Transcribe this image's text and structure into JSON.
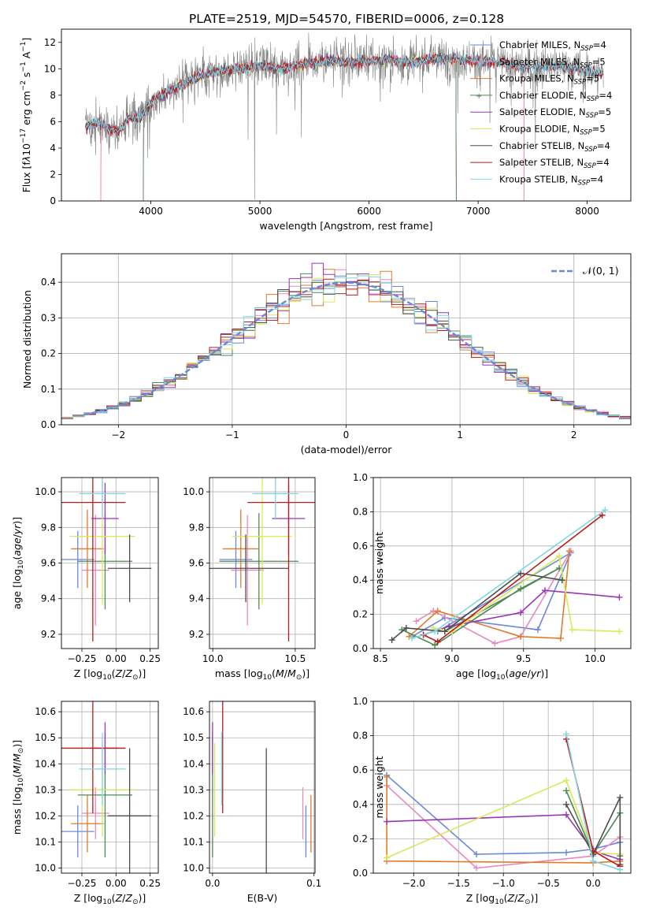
{
  "figure": {
    "title": "PLATE=2519, MJD=54570, FIBERID=0006, z=0.128"
  },
  "colors": {
    "Chabrier MILES": "#6a89d6",
    "Salpeter MILES": "#e889bd",
    "Kroupa MILES": "#e07b2c",
    "Chabrier ELODIE": "#4f8a55",
    "Salpeter ELODIE": "#9a35b5",
    "Kroupa ELODIE": "#d8e85a",
    "Chabrier STELIB": "#4d4d4d",
    "Salpeter STELIB": "#b81c1c",
    "Kroupa STELIB": "#7fd6e0",
    "data": "#808080",
    "normal": "#6a89d6",
    "grid": "#b0b0b0"
  },
  "chart_data": [
    {
      "id": "spectrum",
      "type": "line",
      "xlabel": "wavelength [Angstrom, rest frame]",
      "ylabel_html": "Flux [f<tspan font-style='italic'>λ</tspan>10<tspan dy='-6' font-size='9'>−17</tspan><tspan dy='6'> erg cm</tspan><tspan dy='-6' font-size='9'>−2</tspan><tspan dy='6'> s</tspan><tspan dy='-6' font-size='9'>−1</tspan><tspan dy='6'> A</tspan><tspan dy='-6' font-size='9'>−1</tspan><tspan dy='6'>]</tspan>",
      "xlim": [
        3180,
        8400
      ],
      "ylim": [
        0,
        13
      ],
      "xticks": [
        4000,
        5000,
        6000,
        7000,
        8000
      ],
      "yticks": [
        0,
        2,
        4,
        6,
        8,
        10,
        12
      ],
      "grid": false,
      "legend_position": "right",
      "legend": [
        "Chabrier MILES, N<sub>SSP</sub>=4",
        "Salpeter MILES, N<sub>SSP</sub>=5",
        "Kroupa MILES, N<sub>SSP</sub>=5",
        "Chabrier ELODIE, N<sub>SSP</sub>=4",
        "Salpeter ELODIE, N<sub>SSP</sub>=5",
        "Kroupa ELODIE, N<sub>SSP</sub>=5",
        "Chabrier STELIB, N<sub>SSP</sub>=4",
        "Salpeter STELIB, N<sub>SSP</sub>=4",
        "Kroupa STELIB, N<sub>SSP</sub>=4"
      ],
      "continuum": {
        "x": [
          3400,
          3500,
          3600,
          3700,
          3800,
          3900,
          4000,
          4100,
          4200,
          4400,
          4600,
          4800,
          5000,
          5200,
          5400,
          5600,
          5800,
          6000,
          6200,
          6400,
          6600,
          6800,
          7000,
          7200,
          7400,
          7600,
          7800,
          8000,
          8150
        ],
        "y": [
          5.6,
          5.9,
          5.6,
          5.2,
          6.3,
          6.3,
          7.5,
          8.0,
          8.5,
          9.3,
          9.8,
          10.0,
          10.2,
          10.0,
          10.4,
          10.6,
          10.5,
          10.6,
          10.7,
          10.5,
          10.8,
          10.7,
          10.6,
          10.5,
          10.1,
          10.2,
          10.2,
          9.8,
          9.6
        ]
      },
      "model_breaks": {
        "Salpeter MILES": [
          3540,
          7420
        ],
        "Kroupa MILES": [
          3540,
          7420
        ],
        "Kroupa ELODIE": [
          3930,
          6800
        ],
        "Salpeter ELODIE": [
          3930,
          6800
        ],
        "Chabrier ELODIE": [
          3930,
          6800
        ]
      }
    },
    {
      "id": "residuals",
      "type": "histogram",
      "xlabel": "(data-model)/error",
      "ylabel": "Normed distribution",
      "xlim": [
        -2.5,
        2.5
      ],
      "ylim": [
        0,
        0.48
      ],
      "xticks": [
        -2,
        -1,
        0,
        1,
        2
      ],
      "yticks": [
        0.0,
        0.1,
        0.2,
        0.3,
        0.4
      ],
      "grid": true,
      "legend_position": "top-right",
      "legend": [
        "𝒩(0, 1)"
      ],
      "bin_width": 0.1
    },
    {
      "id": "age_vs_Z",
      "type": "errorbar",
      "xlabel": "Z [log10(Z/Z⊙)]",
      "ylabel": "age  [log10(age/yr)]",
      "xlim": [
        -0.4,
        0.31
      ],
      "ylim": [
        9.12,
        10.08
      ],
      "xticks": [
        -0.25,
        0.0,
        0.25
      ],
      "yticks": [
        9.2,
        9.4,
        9.6,
        9.8,
        10.0
      ],
      "grid": true,
      "points": [
        {
          "model": "Chabrier MILES",
          "x": -0.28,
          "xerr": 0.12,
          "y": 9.62,
          "yerr": 0.16
        },
        {
          "model": "Salpeter MILES",
          "x": -0.15,
          "xerr": 0.1,
          "y": 9.56,
          "yerr": 0.31
        },
        {
          "model": "Kroupa MILES",
          "x": -0.21,
          "xerr": 0.12,
          "y": 9.68,
          "yerr": 0.22
        },
        {
          "model": "Chabrier ELODIE",
          "x": -0.08,
          "xerr": 0.2,
          "y": 9.61,
          "yerr": 0.27
        },
        {
          "model": "Salpeter ELODIE",
          "x": -0.08,
          "xerr": 0.1,
          "y": 9.85,
          "yerr": 0.2
        },
        {
          "model": "Kroupa ELODIE",
          "x": -0.1,
          "xerr": 0.24,
          "y": 9.75,
          "yerr": 0.38
        },
        {
          "model": "Chabrier STELIB",
          "x": 0.1,
          "xerr": 0.16,
          "y": 9.57,
          "yerr": 0.19
        },
        {
          "model": "Salpeter STELIB",
          "x": -0.17,
          "xerr": 0.24,
          "y": 9.94,
          "yerr": 0.78
        },
        {
          "model": "Kroupa STELIB",
          "x": -0.1,
          "xerr": 0.17,
          "y": 9.99,
          "yerr": 0.14
        }
      ]
    },
    {
      "id": "age_vs_mass",
      "type": "errorbar",
      "xlabel": "mass [log10(M/M⊙)]",
      "ylabel": "",
      "xlim": [
        9.98,
        10.62
      ],
      "ylim": [
        9.12,
        10.08
      ],
      "xticks": [
        10.0,
        10.5
      ],
      "yticks": [
        9.2,
        9.4,
        9.6,
        9.8,
        10.0
      ],
      "grid": true,
      "points": [
        {
          "model": "Chabrier MILES",
          "x": 10.14,
          "xerr": 0.1,
          "y": 9.62,
          "yerr": 0.16
        },
        {
          "model": "Salpeter MILES",
          "x": 10.21,
          "xerr": 0.1,
          "y": 9.56,
          "yerr": 0.31
        },
        {
          "model": "Kroupa MILES",
          "x": 10.17,
          "xerr": 0.11,
          "y": 9.68,
          "yerr": 0.22
        },
        {
          "model": "Chabrier ELODIE",
          "x": 10.28,
          "xerr": 0.24,
          "y": 9.61,
          "yerr": 0.27
        },
        {
          "model": "Salpeter ELODIE",
          "x": 10.46,
          "xerr": 0.1,
          "y": 9.85,
          "yerr": 0.2
        },
        {
          "model": "Kroupa ELODIE",
          "x": 10.3,
          "xerr": 0.18,
          "y": 9.75,
          "yerr": 0.38
        },
        {
          "model": "Chabrier STELIB",
          "x": 10.2,
          "xerr": 0.26,
          "y": 9.57,
          "yerr": 0.19
        },
        {
          "model": "Salpeter STELIB",
          "x": 10.46,
          "xerr": 0.25,
          "y": 9.94,
          "yerr": 0.78
        },
        {
          "model": "Kroupa STELIB",
          "x": 10.38,
          "xerr": 0.14,
          "y": 9.99,
          "yerr": 0.14
        }
      ]
    },
    {
      "id": "weight_vs_age",
      "type": "line",
      "xlabel": "age  [log10(age/yr)]",
      "ylabel": "mass weight",
      "xlim": [
        8.45,
        10.25
      ],
      "ylim": [
        0.0,
        1.0
      ],
      "xticks": [
        8.5,
        9.0,
        9.5,
        10.0
      ],
      "yticks": [
        0.0,
        0.2,
        0.4,
        0.6,
        0.8,
        1.0
      ],
      "grid": true,
      "series": [
        {
          "model": "Chabrier MILES",
          "x": [
            8.72,
            8.95,
            9.6,
            9.83,
            8.9
          ],
          "y": [
            0.07,
            0.18,
            0.11,
            0.56,
            0.1
          ]
        },
        {
          "model": "Salpeter MILES",
          "x": [
            8.75,
            8.87,
            9.3,
            9.48,
            9.83
          ],
          "y": [
            0.16,
            0.22,
            0.03,
            0.07,
            0.57
          ]
        },
        {
          "model": "Kroupa MILES",
          "x": [
            8.7,
            8.9,
            9.48,
            9.76,
            9.82
          ],
          "y": [
            0.07,
            0.22,
            0.07,
            0.06,
            0.57
          ]
        },
        {
          "model": "Chabrier ELODIE",
          "x": [
            8.65,
            8.88,
            9.48,
            9.75,
            8.95
          ],
          "y": [
            0.11,
            0.02,
            0.35,
            0.47,
            0.1
          ]
        },
        {
          "model": "Salpeter ELODIE",
          "x": [
            8.8,
            8.98,
            9.48,
            9.65,
            10.17
          ],
          "y": [
            0.08,
            0.13,
            0.21,
            0.34,
            0.3
          ]
        },
        {
          "model": "Kroupa ELODIE",
          "x": [
            8.87,
            9.0,
            9.75,
            9.84,
            10.17
          ],
          "y": [
            0.12,
            0.1,
            0.54,
            0.11,
            0.1
          ]
        },
        {
          "model": "Chabrier STELIB",
          "x": [
            8.58,
            8.68,
            8.95,
            9.48,
            9.77
          ],
          "y": [
            0.05,
            0.12,
            0.1,
            0.44,
            0.4
          ]
        },
        {
          "model": "Salpeter STELIB",
          "x": [
            8.8,
            8.9,
            10.05
          ],
          "y": [
            0.08,
            0.04,
            0.78
          ]
        },
        {
          "model": "Kroupa STELIB",
          "x": [
            8.72,
            8.88,
            10.07
          ],
          "y": [
            0.06,
            0.1,
            0.81
          ]
        }
      ]
    },
    {
      "id": "mass_vs_Z",
      "type": "errorbar",
      "xlabel": "Z [log10(Z/Z⊙)]",
      "ylabel": "mass [log10(M/M⊙)]",
      "xlim": [
        -0.4,
        0.31
      ],
      "ylim": [
        9.98,
        10.64
      ],
      "xticks": [
        -0.25,
        0.0,
        0.25
      ],
      "yticks": [
        10.0,
        10.1,
        10.2,
        10.3,
        10.4,
        10.5,
        10.6
      ],
      "grid": true,
      "points": [
        {
          "model": "Chabrier MILES",
          "x": -0.28,
          "xerr": 0.12,
          "y": 10.14,
          "yerr": 0.1
        },
        {
          "model": "Salpeter MILES",
          "x": -0.15,
          "xerr": 0.1,
          "y": 10.21,
          "yerr": 0.1
        },
        {
          "model": "Kroupa MILES",
          "x": -0.21,
          "xerr": 0.12,
          "y": 10.17,
          "yerr": 0.11
        },
        {
          "model": "Chabrier ELODIE",
          "x": -0.08,
          "xerr": 0.2,
          "y": 10.28,
          "yerr": 0.24
        },
        {
          "model": "Salpeter ELODIE",
          "x": -0.08,
          "xerr": 0.1,
          "y": 10.46,
          "yerr": 0.1
        },
        {
          "model": "Kroupa ELODIE",
          "x": -0.1,
          "xerr": 0.24,
          "y": 10.3,
          "yerr": 0.18
        },
        {
          "model": "Chabrier STELIB",
          "x": 0.1,
          "xerr": 0.16,
          "y": 10.2,
          "yerr": 0.26
        },
        {
          "model": "Salpeter STELIB",
          "x": -0.17,
          "xerr": 0.24,
          "y": 10.46,
          "yerr": 0.25
        },
        {
          "model": "Kroupa STELIB",
          "x": -0.1,
          "xerr": 0.17,
          "y": 10.38,
          "yerr": 0.14
        }
      ]
    },
    {
      "id": "mass_vs_ebv",
      "type": "errorbar",
      "xlabel": "E(B-V)",
      "ylabel": "",
      "xlim": [
        -0.003,
        0.101
      ],
      "ylim": [
        9.98,
        10.64
      ],
      "xticks": [
        0.0,
        0.1
      ],
      "yticks": [
        10.0,
        10.1,
        10.2,
        10.3,
        10.4,
        10.5,
        10.6
      ],
      "grid": true,
      "points": [
        {
          "model": "Chabrier MILES",
          "x": 0.092,
          "y": 10.14,
          "yerr": 0.1
        },
        {
          "model": "Salpeter MILES",
          "x": 0.089,
          "y": 10.21,
          "yerr": 0.1
        },
        {
          "model": "Kroupa MILES",
          "x": 0.097,
          "y": 10.17,
          "yerr": 0.11
        },
        {
          "model": "Chabrier ELODIE",
          "x": 0.0,
          "y": 10.28,
          "yerr": 0.24
        },
        {
          "model": "Salpeter ELODIE",
          "x": 0.0,
          "y": 10.46,
          "yerr": 0.1
        },
        {
          "model": "Kroupa ELODIE",
          "x": 0.002,
          "y": 10.3,
          "yerr": 0.18
        },
        {
          "model": "Chabrier STELIB",
          "x": 0.053,
          "y": 10.2,
          "yerr": 0.26
        },
        {
          "model": "Salpeter STELIB",
          "x": 0.01,
          "y": 10.46,
          "yerr": 0.25
        },
        {
          "model": "Kroupa STELIB",
          "x": 0.009,
          "y": 10.38,
          "yerr": 0.14
        }
      ]
    },
    {
      "id": "weight_vs_Z",
      "type": "line",
      "xlabel": "Z [log10(Z/Z⊙)]",
      "ylabel": "mass weight",
      "xlim": [
        -2.45,
        0.42
      ],
      "ylim": [
        0.0,
        1.0
      ],
      "xticks": [
        -2.0,
        -1.5,
        -1.0,
        -0.5,
        0.0
      ],
      "yticks": [
        0.0,
        0.2,
        0.4,
        0.6,
        0.8,
        1.0
      ],
      "grid": true,
      "series": [
        {
          "model": "Chabrier MILES",
          "x": [
            -2.3,
            -1.3,
            -0.3,
            0.0,
            0.3
          ],
          "y": [
            0.57,
            0.11,
            0.12,
            0.14,
            0.18
          ]
        },
        {
          "model": "Salpeter MILES",
          "x": [
            -2.3,
            -1.3,
            0.0,
            0.3
          ],
          "y": [
            0.51,
            0.03,
            0.1,
            0.21
          ]
        },
        {
          "model": "Kroupa MILES",
          "x": [
            -2.3,
            -2.3,
            0.0,
            0.3,
            0.3
          ],
          "y": [
            0.56,
            0.07,
            0.06,
            0.07,
            0.04
          ]
        },
        {
          "model": "Chabrier ELODIE",
          "x": [
            -0.3,
            0.0,
            0.3,
            0.3
          ],
          "y": [
            0.48,
            0.11,
            0.35,
            0.1
          ]
        },
        {
          "model": "Salpeter ELODIE",
          "x": [
            -2.3,
            -0.3,
            0.0,
            0.3
          ],
          "y": [
            0.3,
            0.34,
            0.13,
            0.08
          ]
        },
        {
          "model": "Kroupa ELODIE",
          "x": [
            -2.3,
            -0.3,
            0.0,
            0.3
          ],
          "y": [
            0.09,
            0.54,
            0.12,
            0.11
          ]
        },
        {
          "model": "Chabrier STELIB",
          "x": [
            -0.3,
            0.0,
            0.3,
            0.3
          ],
          "y": [
            0.4,
            0.11,
            0.44,
            0.05
          ]
        },
        {
          "model": "Salpeter STELIB",
          "x": [
            -0.3,
            0.0,
            0.3
          ],
          "y": [
            0.78,
            0.13,
            0.04
          ]
        },
        {
          "model": "Kroupa STELIB",
          "x": [
            -0.3,
            0.0,
            0.3
          ],
          "y": [
            0.81,
            0.07,
            0.02
          ]
        }
      ]
    }
  ]
}
